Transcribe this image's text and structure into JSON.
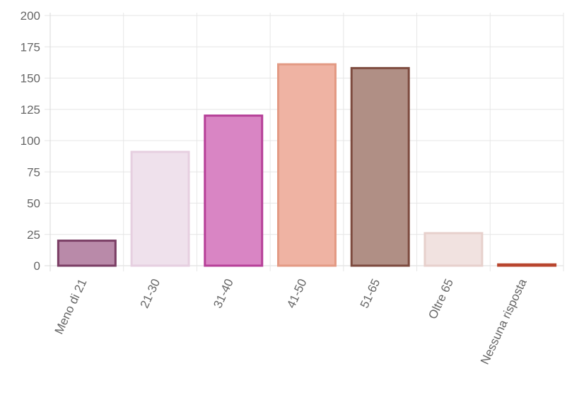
{
  "chart_data": {
    "type": "bar",
    "title": "",
    "xlabel": "",
    "ylabel": "",
    "categories": [
      "Meno di 21",
      "21-30",
      "31-40",
      "41-50",
      "51-65",
      "Oltre 65",
      "Nessuna risposta"
    ],
    "values": [
      20,
      91,
      120,
      161,
      158,
      26,
      1
    ],
    "ylim": [
      0,
      200
    ],
    "yticks": [
      0,
      25,
      50,
      75,
      100,
      125,
      150,
      175,
      200
    ],
    "grid": true,
    "legend": "none",
    "bar_fill_colors": [
      "#b98aa9",
      "#efe1ec",
      "#d985c4",
      "#efb3a3",
      "#b08f85",
      "#f1e2e0",
      "#d9735a"
    ],
    "bar_border_colors": [
      "#7a3d64",
      "#e6cfe0",
      "#b63f98",
      "#e39a84",
      "#7d4a3e",
      "#e7d0cc",
      "#b8452e"
    ]
  }
}
